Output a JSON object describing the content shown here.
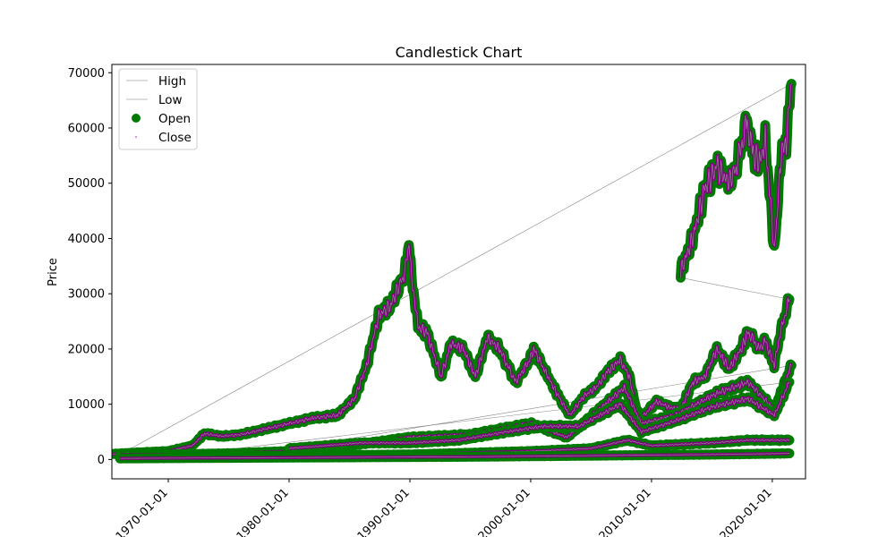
{
  "chart_data": {
    "type": "scatter",
    "title": "Candlestick Chart",
    "xlabel": "",
    "ylabel": "Price",
    "xlim": [
      "1965-05-01",
      "2022-10-01"
    ],
    "ylim": [
      -3500,
      71500
    ],
    "x_ticks": [
      "1970-01-01",
      "1980-01-01",
      "1990-01-01",
      "2000-01-01",
      "2010-01-01",
      "2020-01-01"
    ],
    "y_ticks": [
      0,
      10000,
      20000,
      30000,
      40000,
      50000,
      60000,
      70000
    ],
    "grid": false,
    "legend_position": "top-left",
    "legend": [
      {
        "label": "High",
        "marker": "line",
        "color": "#bbbbbb"
      },
      {
        "label": "Low",
        "marker": "line",
        "color": "#bbbbbb"
      },
      {
        "label": "Open",
        "marker": "circle",
        "color": "#007a00"
      },
      {
        "label": "Close",
        "marker": "dot",
        "color": "#d09ad0"
      }
    ],
    "colors": {
      "open": "#007a00",
      "close": "#800080",
      "high_low": "#888888"
    },
    "series": [
      {
        "x": [
          "1965-06-01",
          "1967-01-01",
          "1970-01-01",
          "1972-01-01",
          "1973-01-01",
          "1974-06-01",
          "1976-01-01",
          "1978-01-01",
          "1980-01-01",
          "1982-01-01",
          "1984-01-01",
          "1985-06-01",
          "1986-06-01",
          "1987-06-01",
          "1988-06-01",
          "1989-06-01",
          "1989-12-29",
          "1990-03-01",
          "1990-09-01",
          "1991-06-01",
          "1992-08-01",
          "1993-06-01",
          "1994-06-01",
          "1995-06-01",
          "1996-06-01",
          "1997-06-01",
          "1998-10-01",
          "1999-12-01",
          "2000-04-01",
          "2001-06-01",
          "2002-06-01",
          "2003-04-01",
          "2004-06-01",
          "2005-06-01",
          "2006-06-01",
          "2007-06-01",
          "2008-03-01",
          "2008-10-01",
          "2009-03-01",
          "2010-06-01",
          "2011-06-01",
          "2012-06-01",
          "2013-06-01",
          "2014-06-01",
          "2015-06-01",
          "2016-06-01",
          "2017-06-01",
          "2018-01-01",
          "2018-12-01",
          "2019-06-01",
          "2020-03-01",
          "2020-09-01",
          "2021-06-01"
        ],
        "values": [
          1000,
          1200,
          1500,
          2500,
          4700,
          4200,
          4500,
          5500,
          6500,
          7500,
          8000,
          11000,
          17000,
          26000,
          28000,
          33000,
          38500,
          33000,
          24000,
          23000,
          15000,
          21000,
          20000,
          15000,
          22000,
          20000,
          14000,
          18000,
          20000,
          15000,
          11000,
          8000,
          11500,
          13000,
          16000,
          18000,
          15000,
          9000,
          7500,
          10500,
          9500,
          9000,
          14000,
          15000,
          20000,
          16500,
          20000,
          23000,
          20000,
          21500,
          17000,
          23000,
          29000
        ]
      },
      {
        "x": [
          "2012-06-01",
          "2013-06-01",
          "2014-06-01",
          "2015-06-01",
          "2016-06-01",
          "2017-01-01",
          "2017-12-01",
          "2018-06-01",
          "2019-01-01",
          "2019-06-01",
          "2020-03-01",
          "2020-06-01",
          "2020-09-01",
          "2021-03-01",
          "2021-08-01"
        ],
        "values": [
          34000,
          40000,
          49000,
          53000,
          50000,
          53000,
          61000,
          55000,
          54000,
          58000,
          38000,
          45000,
          54000,
          58000,
          68000
        ]
      },
      {
        "x": [
          "1966-01-01",
          "1970-01-01",
          "1975-01-01",
          "1980-01-01",
          "1985-01-01",
          "1990-01-01",
          "1995-01-01",
          "2000-01-01",
          "2003-01-01",
          "2007-10-01",
          "2009-03-01",
          "2012-01-01",
          "2015-06-01",
          "2018-01-01",
          "2020-03-01",
          "2021-08-01"
        ],
        "values": [
          900,
          900,
          1100,
          1500,
          2500,
          4000,
          4500,
          6500,
          4000,
          13000,
          6500,
          8000,
          12000,
          14000,
          9000,
          17000
        ]
      },
      {
        "x": [
          "1980-01-01",
          "1983-01-01",
          "1986-01-01",
          "1990-01-01",
          "1994-01-01",
          "1998-01-01",
          "2001-01-01",
          "2004-01-01",
          "2007-06-01",
          "2009-03-01",
          "2012-01-01",
          "2015-01-01",
          "2018-01-01",
          "2020-03-01",
          "2021-06-01"
        ],
        "values": [
          2000,
          2500,
          3000,
          3000,
          3500,
          5000,
          6000,
          6000,
          10000,
          5000,
          7000,
          9500,
          11000,
          8000,
          14000
        ]
      },
      {
        "x": [
          "1970-01-01",
          "1980-01-01",
          "1990-01-01",
          "2000-01-01",
          "2005-01-01",
          "2008-01-01",
          "2010-01-01",
          "2015-01-01",
          "2018-01-01",
          "2021-06-01"
        ],
        "values": [
          500,
          700,
          900,
          1500,
          2000,
          3500,
          2500,
          3000,
          3500,
          3500
        ]
      },
      {
        "x": [
          "1966-01-01",
          "1975-01-01",
          "1985-01-01",
          "1995-01-01",
          "2005-01-01",
          "2010-01-01",
          "2015-01-01",
          "2021-06-01"
        ],
        "values": [
          200,
          300,
          400,
          500,
          700,
          800,
          900,
          1100
        ]
      }
    ]
  }
}
